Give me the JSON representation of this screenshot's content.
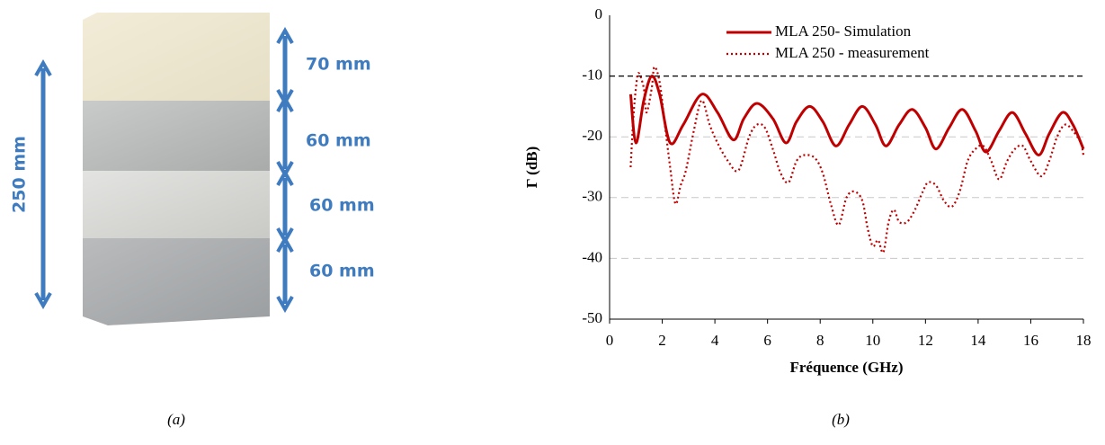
{
  "photo": {
    "layer_labels": [
      "70 mm",
      "60 mm",
      "60 mm",
      "60 mm"
    ],
    "total_label": "250 mm",
    "caption": "(a)"
  },
  "chart_data": {
    "type": "line",
    "caption": "(b)",
    "xlabel": "Fréquence (GHz)",
    "ylabel": "Γ (dB)",
    "xlim": [
      0,
      18
    ],
    "xticks": [
      0,
      2,
      4,
      6,
      8,
      10,
      12,
      14,
      16,
      18
    ],
    "ylim": [
      -50,
      0
    ],
    "yticks": [
      0,
      -10,
      -20,
      -30,
      -40,
      -50
    ],
    "grid": true,
    "hline": -10,
    "series": [
      {
        "name": "MLA 250- Simulation",
        "color": "#c00000",
        "style": "solid",
        "x": [
          0.8,
          1.0,
          1.3,
          1.6,
          1.9,
          2.3,
          2.8,
          3.5,
          4.1,
          4.7,
          5.1,
          5.6,
          6.2,
          6.7,
          7.1,
          7.6,
          8.1,
          8.6,
          9.1,
          9.6,
          10.1,
          10.5,
          11.0,
          11.5,
          12.0,
          12.4,
          12.9,
          13.4,
          13.9,
          14.3,
          14.8,
          15.3,
          15.8,
          16.3,
          16.7,
          17.2,
          17.6,
          18.0
        ],
        "values": [
          -13,
          -21,
          -14,
          -10,
          -13,
          -21,
          -18,
          -13,
          -16,
          -20.5,
          -17,
          -14.5,
          -17,
          -21,
          -17.5,
          -15,
          -17.5,
          -21.5,
          -18,
          -15,
          -18,
          -21.5,
          -18,
          -15.5,
          -18.5,
          -22,
          -18.5,
          -15.5,
          -19,
          -22.5,
          -19,
          -16,
          -19.5,
          -23,
          -19.5,
          -16,
          -18,
          -22
        ]
      },
      {
        "name": "MLA 250 - measurement",
        "color": "#c00000",
        "style": "dotted",
        "x": [
          0.8,
          0.9,
          1.0,
          1.1,
          1.3,
          1.4,
          1.6,
          1.7,
          1.9,
          2.1,
          2.3,
          2.5,
          2.7,
          2.9,
          3.2,
          3.5,
          3.8,
          4.1,
          4.5,
          4.9,
          5.3,
          5.6,
          5.9,
          6.2,
          6.5,
          6.8,
          7.1,
          7.4,
          7.8,
          8.1,
          8.4,
          8.7,
          9.0,
          9.3,
          9.6,
          9.8,
          10.0,
          10.2,
          10.4,
          10.6,
          10.8,
          11.0,
          11.3,
          11.6,
          11.9,
          12.1,
          12.4,
          12.7,
          13.0,
          13.3,
          13.6,
          13.9,
          14.2,
          14.5,
          14.8,
          15.1,
          15.4,
          15.7,
          16.0,
          16.4,
          16.7,
          17.0,
          17.3,
          17.6,
          17.9,
          18.0
        ],
        "values": [
          -25,
          -17,
          -12,
          -9.5,
          -12,
          -16,
          -12,
          -8.5,
          -11,
          -18,
          -25,
          -31,
          -28,
          -25.5,
          -19,
          -14,
          -18,
          -21,
          -24,
          -25.5,
          -20,
          -18,
          -18.5,
          -22,
          -26,
          -27.5,
          -24,
          -23,
          -23.5,
          -26,
          -31,
          -34.5,
          -30,
          -29,
          -30.5,
          -35,
          -38,
          -37,
          -39,
          -34,
          -32,
          -34,
          -34,
          -32,
          -29,
          -27.5,
          -28,
          -30.5,
          -31.5,
          -29,
          -24,
          -22,
          -21.5,
          -24,
          -27,
          -24,
          -22,
          -21.5,
          -24,
          -26.5,
          -24,
          -20,
          -18,
          -19,
          -21,
          -23
        ]
      }
    ]
  }
}
